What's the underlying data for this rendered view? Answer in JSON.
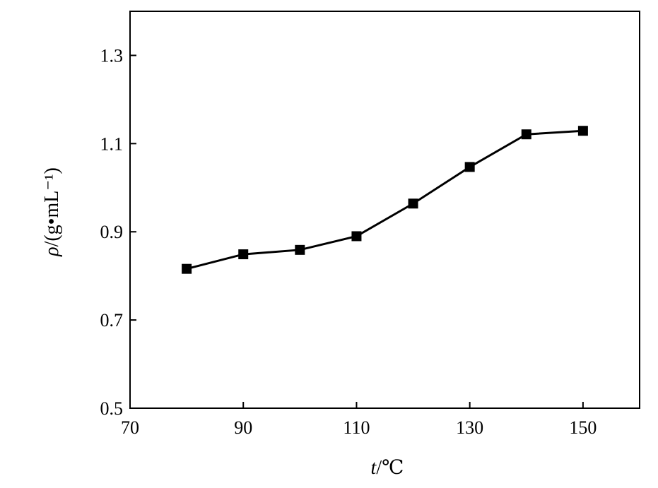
{
  "chart_data": {
    "type": "line",
    "xlabel": {
      "italic": "t",
      "rest": "/℃"
    },
    "ylabel": {
      "italic": "ρ",
      "rest": "/(g•mL⁻¹)"
    },
    "xlim": [
      70,
      160
    ],
    "ylim": [
      0.5,
      1.4
    ],
    "xticks": [
      70,
      90,
      110,
      130,
      150
    ],
    "yticks": [
      0.5,
      0.7,
      0.9,
      1.1,
      1.3
    ],
    "xtick_labels": [
      "70",
      "90",
      "110",
      "130",
      "150"
    ],
    "ytick_labels": [
      "0.5",
      "0.7",
      "0.9",
      "1.1",
      "1.3"
    ],
    "grid": false,
    "marker": "square",
    "series": [
      {
        "x": [
          80,
          90,
          100,
          110,
          120,
          130,
          140,
          150
        ],
        "y": [
          0.816,
          0.849,
          0.859,
          0.89,
          0.964,
          1.047,
          1.121,
          1.129
        ]
      }
    ],
    "color": "#000000"
  }
}
